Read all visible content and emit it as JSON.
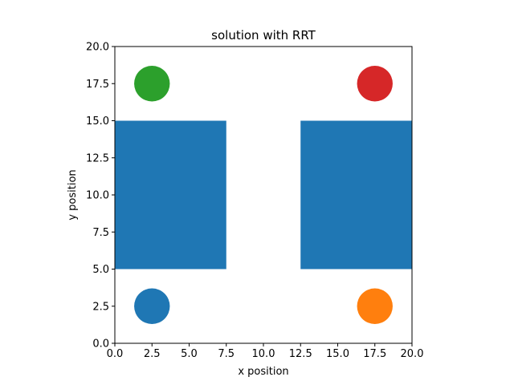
{
  "chart_data": {
    "type": "scatter",
    "title": "solution with RRT",
    "xlabel": "x position",
    "ylabel": "y position",
    "xlim": [
      0,
      20
    ],
    "ylim": [
      0,
      20
    ],
    "grid": false,
    "xticks": [
      "0.0",
      "2.5",
      "5.0",
      "7.5",
      "10.0",
      "12.5",
      "15.0",
      "17.5",
      "20.0"
    ],
    "yticks": [
      "0.0",
      "2.5",
      "5.0",
      "7.5",
      "10.0",
      "12.5",
      "15.0",
      "17.5",
      "20.0"
    ],
    "obstacles": [
      {
        "x0": 0,
        "y0": 5,
        "x1": 7.5,
        "y1": 15,
        "color": "#1f77b4"
      },
      {
        "x0": 12.5,
        "y0": 5,
        "x1": 20,
        "y1": 15,
        "color": "#1f77b4"
      }
    ],
    "points": [
      {
        "x": 2.5,
        "y": 2.5,
        "radius": 1.2,
        "color": "#1f77b4"
      },
      {
        "x": 17.5,
        "y": 2.5,
        "radius": 1.2,
        "color": "#ff7f0e"
      },
      {
        "x": 2.5,
        "y": 17.5,
        "radius": 1.2,
        "color": "#2ca02c"
      },
      {
        "x": 17.5,
        "y": 17.5,
        "radius": 1.2,
        "color": "#d62728"
      }
    ]
  }
}
